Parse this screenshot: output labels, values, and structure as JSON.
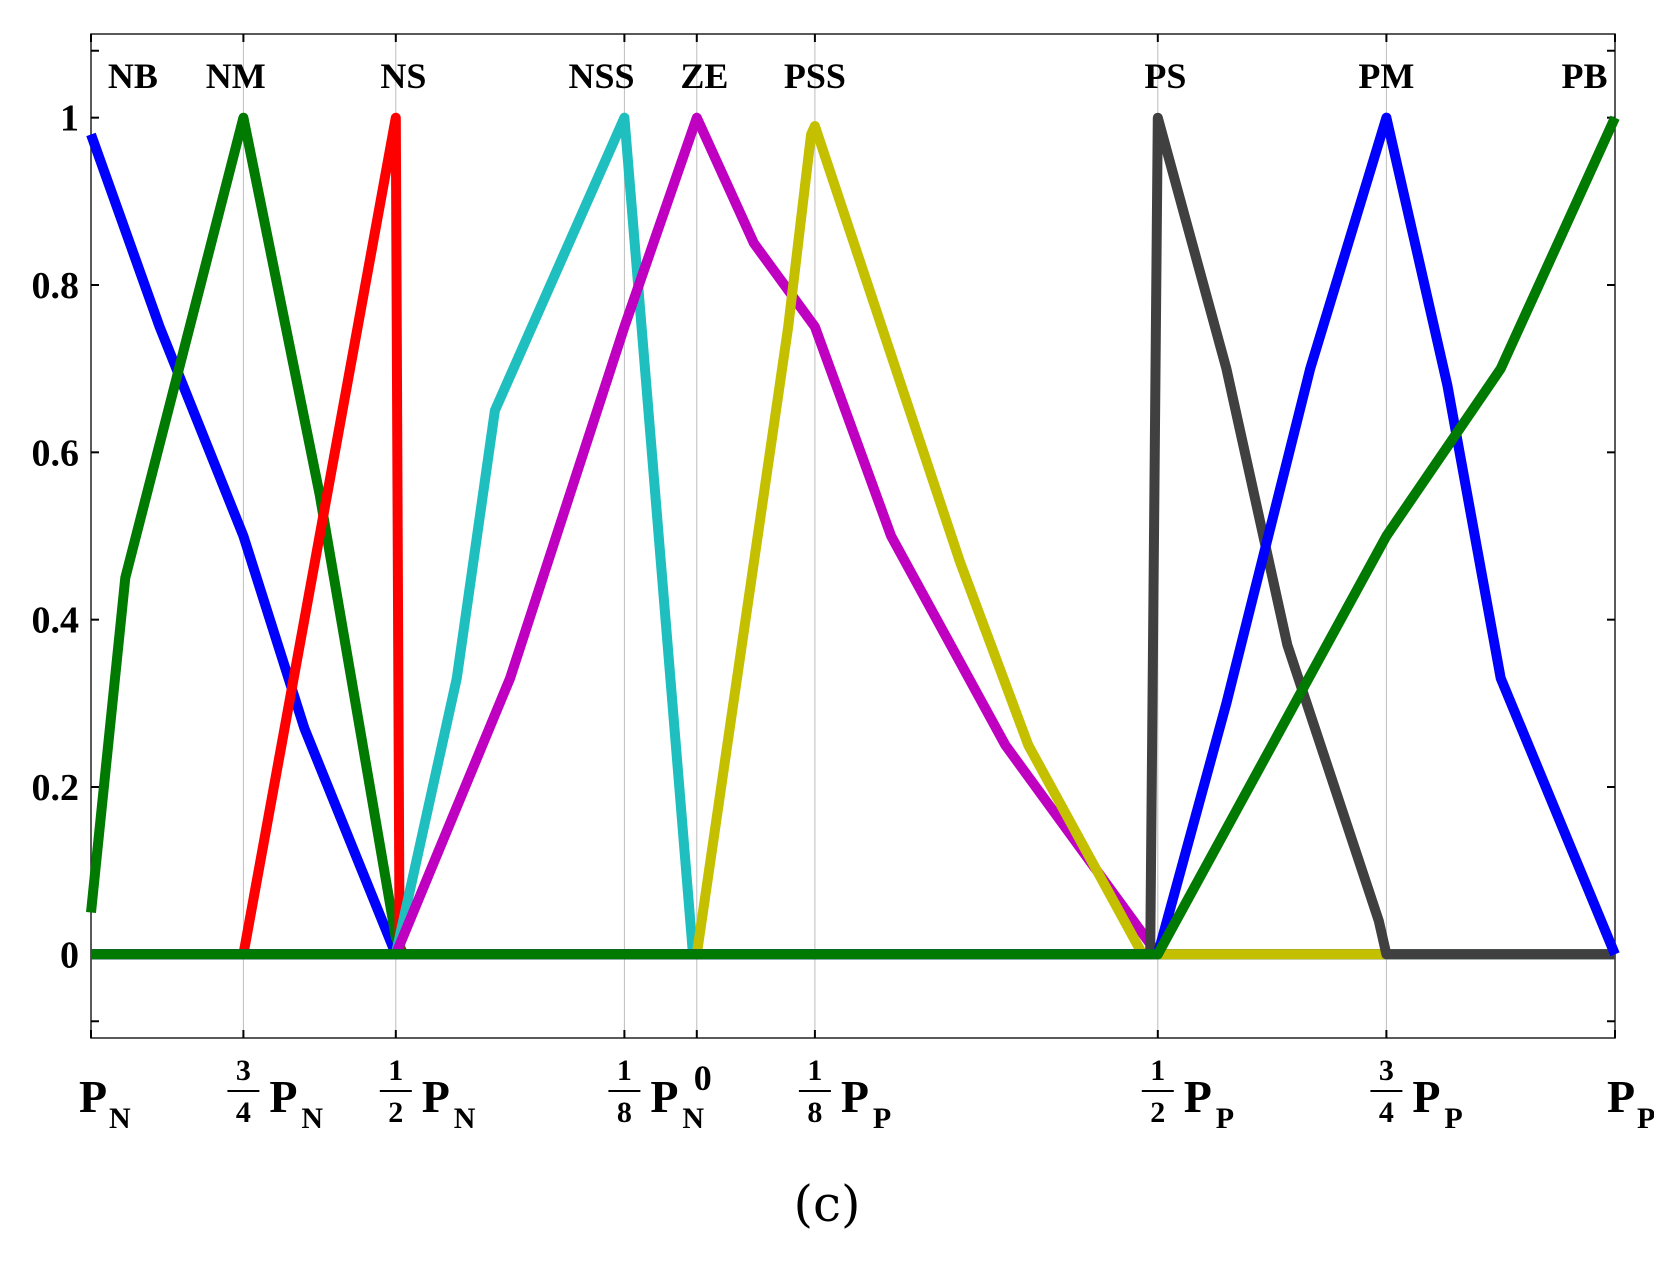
{
  "chart_data": {
    "type": "line",
    "title": "",
    "xlabel": "",
    "ylabel": "",
    "xlim": [
      -1,
      1
    ],
    "ylim": [
      -0.1,
      1.1
    ],
    "yticks": [
      {
        "v": 0,
        "label": "0"
      },
      {
        "v": 0.2,
        "label": "0.2"
      },
      {
        "v": 0.4,
        "label": "0.4"
      },
      {
        "v": 0.6,
        "label": "0.6"
      },
      {
        "v": 0.8,
        "label": "0.8"
      },
      {
        "v": 1,
        "label": "1"
      }
    ],
    "xticks": [
      {
        "v": -1,
        "frac": null,
        "base": "P",
        "sub": "N"
      },
      {
        "v": -0.8,
        "frac": [
          "3",
          "4"
        ],
        "base": "P",
        "sub": "N"
      },
      {
        "v": -0.6,
        "frac": [
          "1",
          "2"
        ],
        "base": "P",
        "sub": "N"
      },
      {
        "v": -0.3,
        "frac": [
          "1",
          "8"
        ],
        "base": "P",
        "sub": "N"
      },
      {
        "v": -0.205,
        "frac": null,
        "base": "0",
        "sub": ""
      },
      {
        "v": -0.05,
        "frac": [
          "1",
          "8"
        ],
        "base": "P",
        "sub": "P"
      },
      {
        "v": 0.4,
        "frac": [
          "1",
          "2"
        ],
        "base": "P",
        "sub": "P"
      },
      {
        "v": 0.7,
        "frac": [
          "3",
          "4"
        ],
        "base": "P",
        "sub": "P"
      },
      {
        "v": 1,
        "frac": null,
        "base": "P",
        "sub": "P"
      }
    ],
    "series": [
      {
        "name": "NB",
        "label_x": -0.945,
        "color": "#0000ff",
        "points": [
          [
            -1,
            0.98
          ],
          [
            -0.91,
            0.75
          ],
          [
            -0.8,
            0.5
          ],
          [
            -0.72,
            0.27
          ],
          [
            -0.6,
            0
          ],
          [
            1,
            0
          ]
        ]
      },
      {
        "name": "NM",
        "label_x": -0.81,
        "color": "#007a00",
        "points": [
          [
            -1,
            0.05
          ],
          [
            -0.955,
            0.45
          ],
          [
            -0.8,
            1.0
          ],
          [
            -0.7,
            0.55
          ],
          [
            -0.6,
            0.02
          ],
          [
            -0.59,
            0
          ],
          [
            1,
            0
          ]
        ]
      },
      {
        "name": "NS",
        "label_x": -0.59,
        "color": "#ff0000",
        "points": [
          [
            -1,
            0
          ],
          [
            -0.8,
            0
          ],
          [
            -0.6,
            1.0
          ],
          [
            -0.595,
            0
          ],
          [
            1,
            0
          ]
        ]
      },
      {
        "name": "NSS",
        "label_x": -0.33,
        "color": "#1fbfbf",
        "points": [
          [
            -1,
            0
          ],
          [
            -0.6,
            0
          ],
          [
            -0.52,
            0.33
          ],
          [
            -0.47,
            0.65
          ],
          [
            -0.3,
            1.0
          ],
          [
            -0.21,
            0
          ],
          [
            1,
            0
          ]
        ]
      },
      {
        "name": "ZE",
        "label_x": -0.195,
        "color": "#c000c0",
        "points": [
          [
            -1,
            0
          ],
          [
            -0.6,
            0
          ],
          [
            -0.45,
            0.33
          ],
          [
            -0.3,
            0.75
          ],
          [
            -0.205,
            1.0
          ],
          [
            -0.13,
            0.85
          ],
          [
            -0.05,
            0.75
          ],
          [
            0.05,
            0.5
          ],
          [
            0.2,
            0.25
          ],
          [
            0.4,
            0
          ]
        ]
      },
      {
        "name": "PSS",
        "label_x": -0.05,
        "color": "#c4c000",
        "points": [
          [
            -1,
            0
          ],
          [
            -0.205,
            0
          ],
          [
            -0.085,
            0.75
          ],
          [
            -0.055,
            0.98
          ],
          [
            -0.05,
            0.99
          ],
          [
            0.14,
            0.47
          ],
          [
            0.23,
            0.25
          ],
          [
            0.38,
            0
          ],
          [
            0.7,
            0
          ]
        ]
      },
      {
        "name": "PS",
        "label_x": 0.41,
        "color": "#404040",
        "points": [
          [
            -1,
            0
          ],
          [
            0.39,
            0
          ],
          [
            0.4,
            1.0
          ],
          [
            0.49,
            0.7
          ],
          [
            0.57,
            0.37
          ],
          [
            0.69,
            0.04
          ],
          [
            0.7,
            0
          ],
          [
            1,
            0
          ]
        ]
      },
      {
        "name": "PM",
        "label_x": 0.7,
        "color": "#0000ff",
        "points": [
          [
            -1,
            0
          ],
          [
            0.4,
            0
          ],
          [
            0.49,
            0.3
          ],
          [
            0.6,
            0.7
          ],
          [
            0.7,
            1.0
          ],
          [
            0.78,
            0.68
          ],
          [
            0.85,
            0.33
          ],
          [
            1,
            0
          ]
        ]
      },
      {
        "name": "PB",
        "label_x": 0.96,
        "color": "#007a00",
        "points": [
          [
            -1,
            0
          ],
          [
            0.4,
            0
          ],
          [
            0.52,
            0.2
          ],
          [
            0.7,
            0.5
          ],
          [
            0.85,
            0.7
          ],
          [
            0.93,
            0.86
          ],
          [
            1,
            1.0
          ]
        ]
      }
    ]
  },
  "caption": "(c)"
}
